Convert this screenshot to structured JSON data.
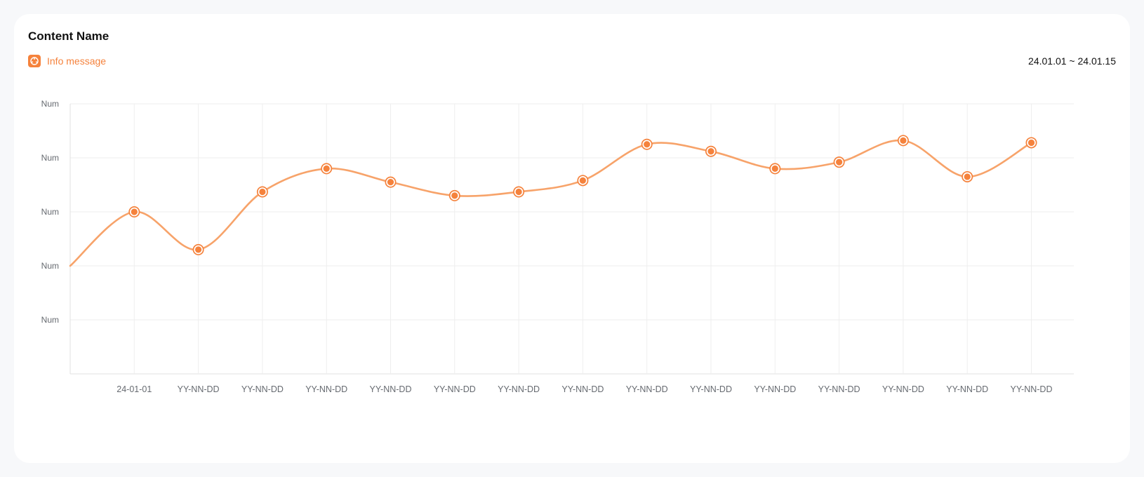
{
  "card": {
    "title": "Content Name",
    "info_message": "Info message",
    "info_icon": "info-icon",
    "date_range": "24.01.01 ~ 24.01.15"
  },
  "colors": {
    "accent": "#f5823c",
    "line": "#f7a36a",
    "grid": "#eeeeee",
    "axis": "#e2e2e2"
  },
  "chart_data": {
    "type": "line",
    "title": "",
    "xlabel": "",
    "ylabel": "",
    "y_tick_labels": [
      "Num",
      "Num",
      "Num",
      "Num",
      "Num"
    ],
    "ylim": [
      0,
      5
    ],
    "categories": [
      "24-01-01",
      "YY-NN-DD",
      "YY-NN-DD",
      "YY-NN-DD",
      "YY-NN-DD",
      "YY-NN-DD",
      "YY-NN-DD",
      "YY-NN-DD",
      "YY-NN-DD",
      "YY-NN-DD",
      "YY-NN-DD",
      "YY-NN-DD",
      "YY-NN-DD",
      "YY-NN-DD",
      "YY-NN-DD"
    ],
    "start_value": 2.0,
    "values": [
      3.0,
      2.3,
      3.37,
      3.8,
      3.55,
      3.3,
      3.37,
      3.58,
      4.25,
      4.12,
      3.8,
      3.92,
      4.32,
      3.65,
      4.28
    ],
    "smooth": true,
    "grid": true,
    "legend": "none"
  }
}
